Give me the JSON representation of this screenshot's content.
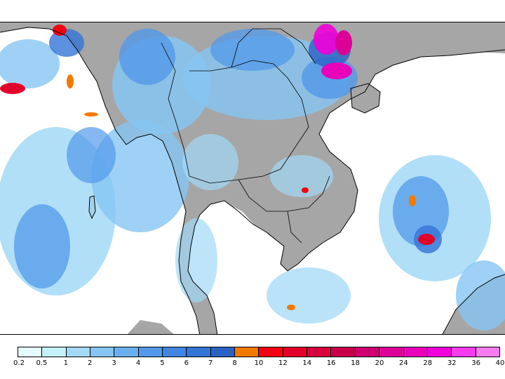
{
  "legend": {
    "colors": [
      "#e6fbff",
      "#c4f1fa",
      "#a3d9f7",
      "#86c6f2",
      "#6bb0ee",
      "#5299e9",
      "#3f86e3",
      "#3474d6",
      "#2a62c4",
      "#f37a00",
      "#f20012",
      "#e2002a",
      "#d5003c",
      "#c8004a",
      "#cf0072",
      "#dd0098",
      "#e800bb",
      "#f200d9",
      "#f73cf0",
      "#f87aef"
    ],
    "labels": [
      "0.2",
      "0.5",
      "1",
      "2",
      "3",
      "4",
      "5",
      "6",
      "7",
      "8",
      "10",
      "12",
      "14",
      "16",
      "18",
      "20",
      "24",
      "28",
      "32",
      "36",
      "40"
    ]
  },
  "map": {
    "land_color": "#a6a6a6",
    "coast_color": "#000000"
  }
}
